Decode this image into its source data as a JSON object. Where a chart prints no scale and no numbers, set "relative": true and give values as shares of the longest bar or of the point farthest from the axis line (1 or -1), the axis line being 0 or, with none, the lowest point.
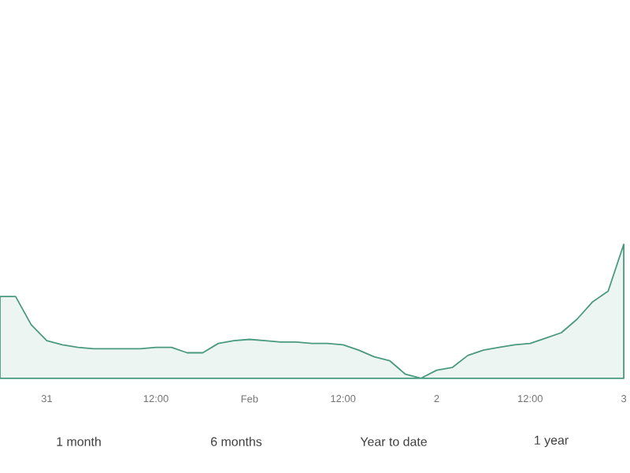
{
  "chart_data": {
    "type": "area",
    "relative": true,
    "color": "#4a9a7e",
    "categories": [
      null,
      null,
      null,
      "31",
      null,
      null,
      null,
      null,
      null,
      null,
      "12:00",
      null,
      null,
      null,
      null,
      null,
      "Feb",
      null,
      null,
      null,
      null,
      null,
      "12:00",
      null,
      null,
      null,
      null,
      null,
      "2",
      null,
      null,
      null,
      null,
      null,
      "12:00",
      null,
      null,
      null,
      null,
      null,
      "3"
    ],
    "values": [
      0.61,
      0.61,
      0.4,
      0.28,
      0.25,
      0.23,
      0.22,
      0.22,
      0.22,
      0.22,
      0.23,
      0.23,
      0.19,
      0.19,
      0.26,
      0.28,
      0.29,
      0.28,
      0.27,
      0.27,
      0.26,
      0.26,
      0.25,
      0.21,
      0.16,
      0.13,
      0.03,
      0,
      0.06,
      0.08,
      0.17,
      0.21,
      0.23,
      0.25,
      0.26,
      0.3,
      0.34,
      0.44,
      0.57,
      0.65,
      1
    ],
    "annotations": [
      "1 month",
      "6 months",
      "Year to date",
      "1 year"
    ]
  }
}
